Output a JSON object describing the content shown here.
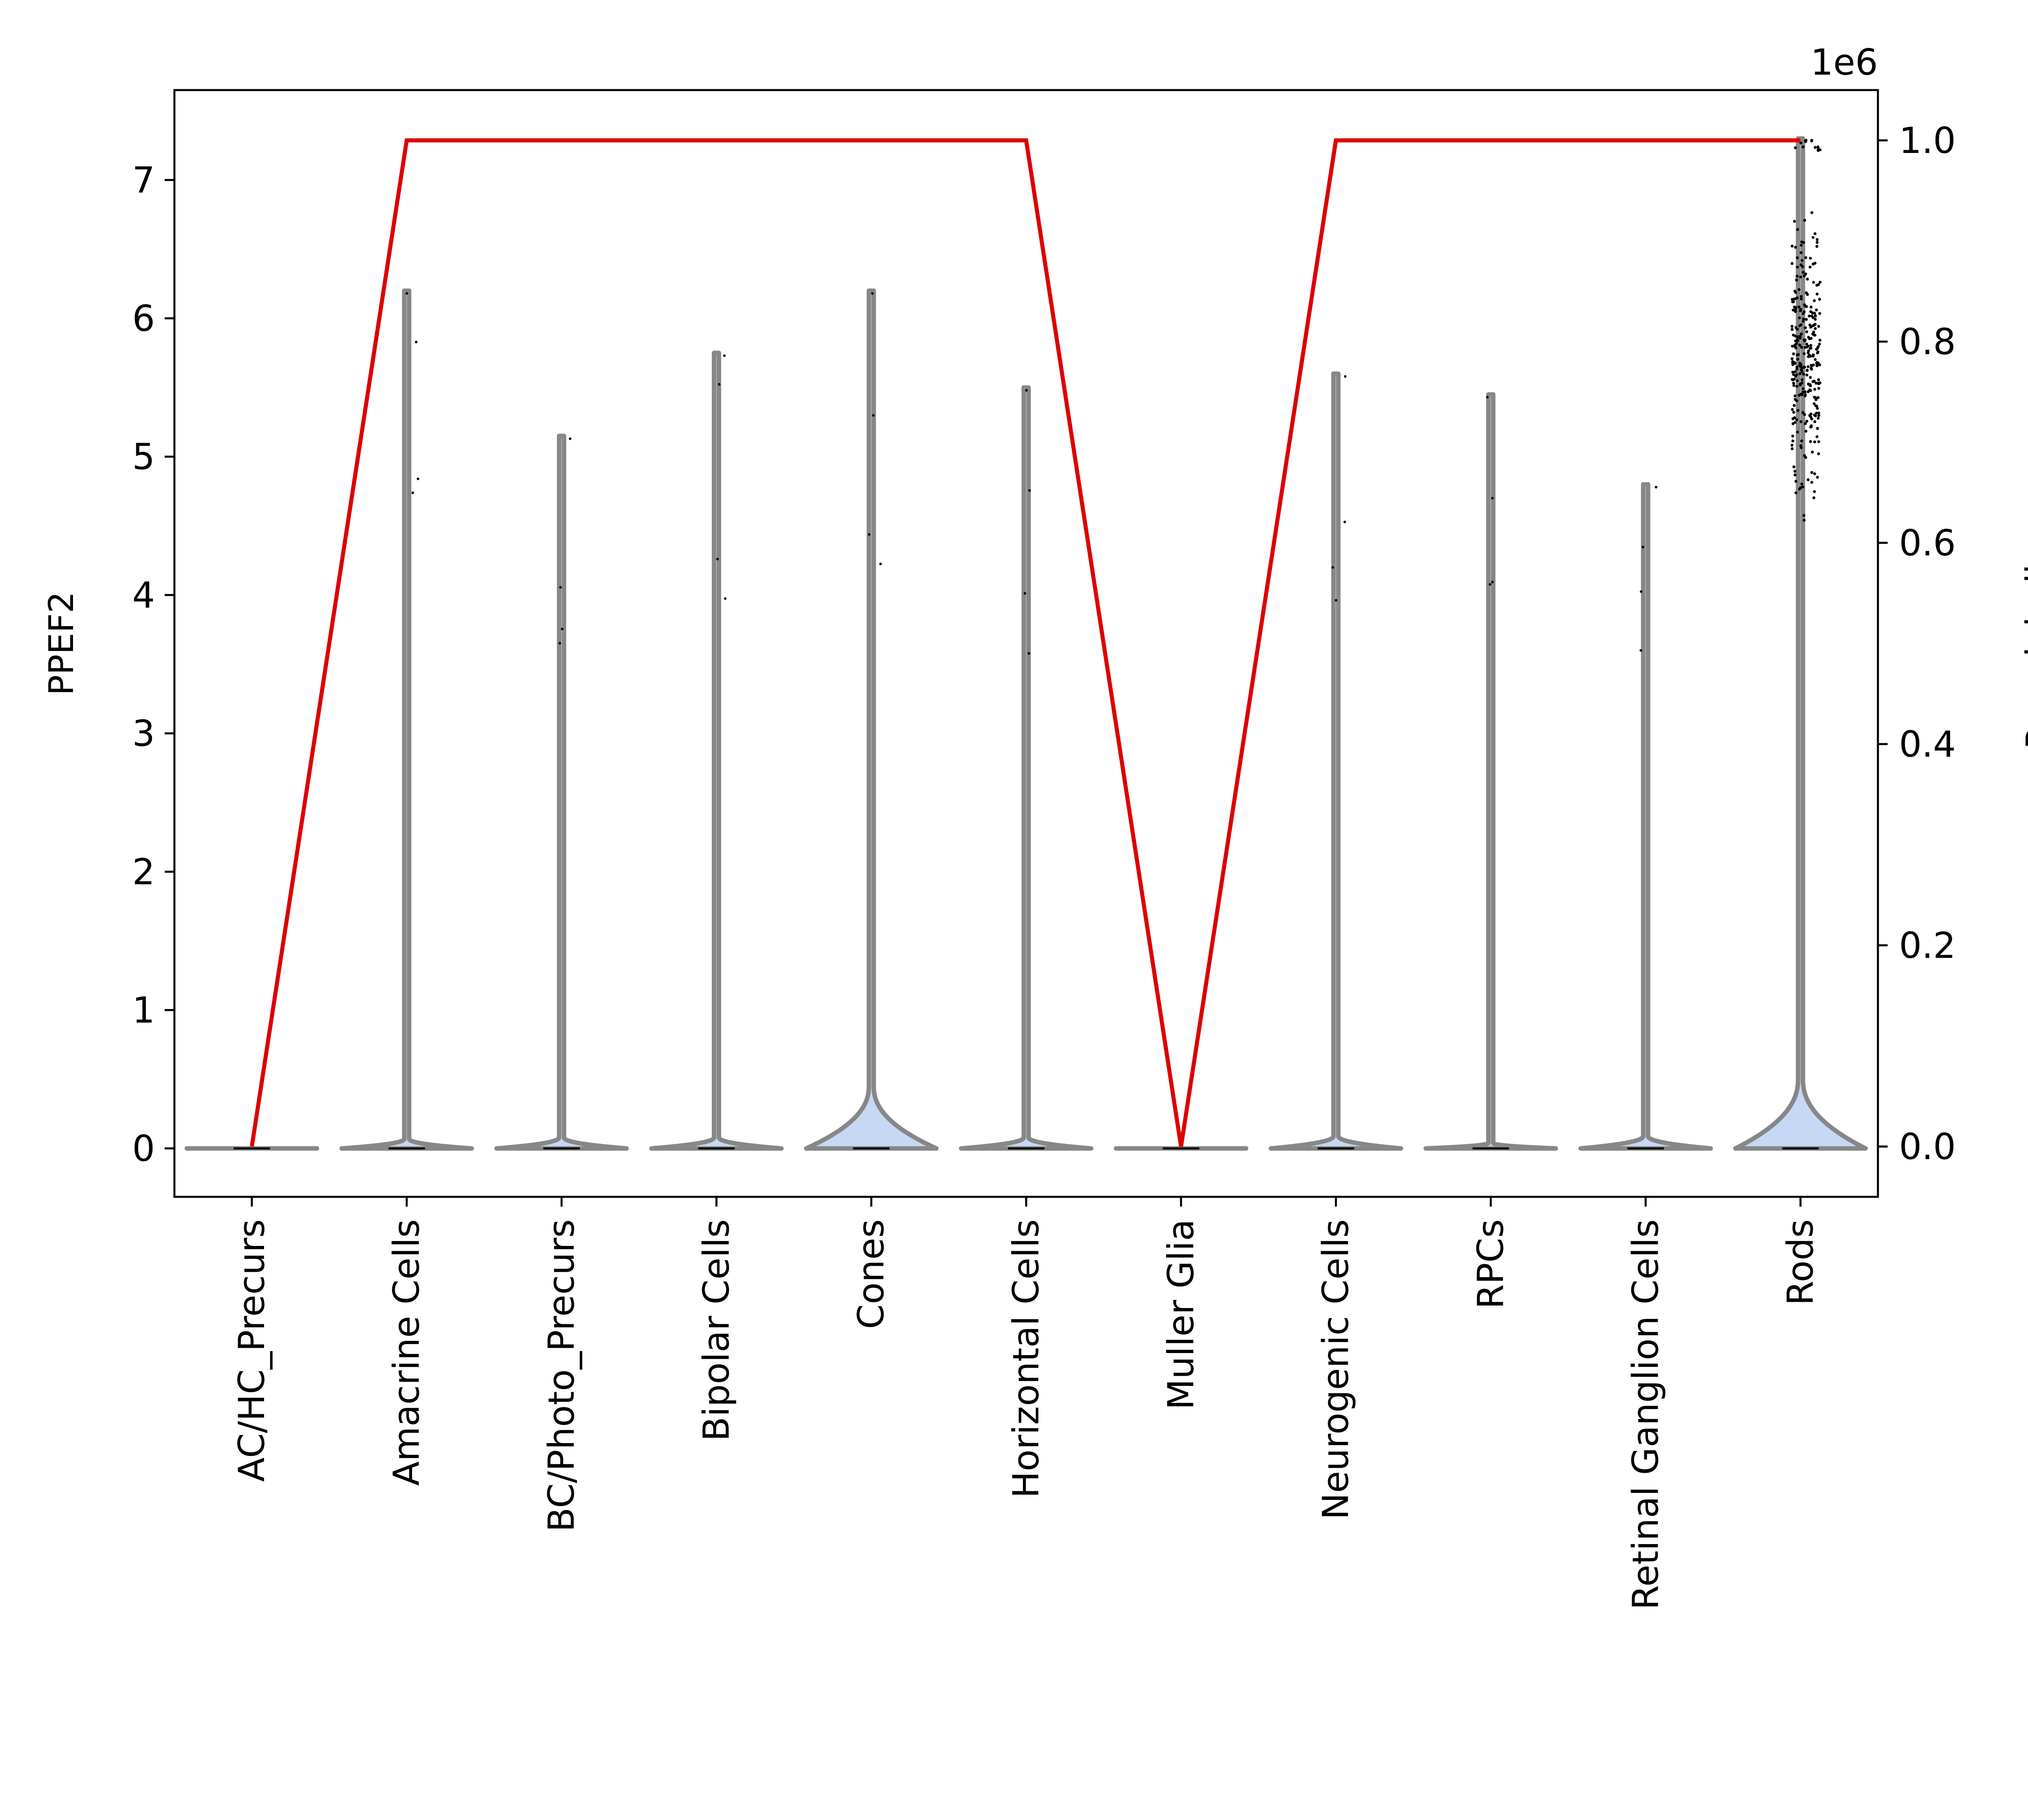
{
  "chart_data": {
    "type": "violin",
    "categories": [
      "AC/HC_Precurs",
      "Amacrine Cells",
      "BC/Photo_Precurs",
      "Bipolar Cells",
      "Cones",
      "Horizontal Cells",
      "Muller Glia",
      "Neurogenic Cells",
      "RPCs",
      "Retinal Ganglion Cells",
      "Rods"
    ],
    "ylabel": "PPEF2",
    "y2label": "Pseudobulk",
    "y2_offset_label": "1e6",
    "ylim": [
      -0.35,
      7.65
    ],
    "y2lim": [
      -0.05,
      1.05
    ],
    "yticks": [
      0,
      1,
      2,
      3,
      4,
      5,
      6,
      7
    ],
    "y2ticks": [
      0.0,
      0.2,
      0.4,
      0.6,
      0.8,
      1.0
    ],
    "grid": false,
    "violin_max": [
      0.0,
      6.2,
      5.15,
      5.75,
      6.2,
      5.5,
      0.0,
      5.6,
      5.45,
      4.8,
      7.3
    ],
    "violin_bulge_height": [
      0.0,
      0.07,
      0.08,
      0.08,
      0.45,
      0.08,
      0.0,
      0.09,
      0.04,
      0.09,
      0.5
    ],
    "violin_bulge_halfwidth": [
      0.42,
      0.42,
      0.42,
      0.42,
      0.42,
      0.42,
      0.42,
      0.42,
      0.42,
      0.42,
      0.42
    ],
    "pseudobulk": [
      0,
      1000000,
      1000000,
      1000000,
      1000000,
      1000000,
      0,
      1000000,
      1000000,
      1000000,
      1000000
    ],
    "colors": {
      "violin_fill": "#c6d8f4",
      "violin_edge": "#878787",
      "pseudobulk_line": "#dd0000",
      "points": "#000000",
      "axes": "#000000"
    }
  }
}
